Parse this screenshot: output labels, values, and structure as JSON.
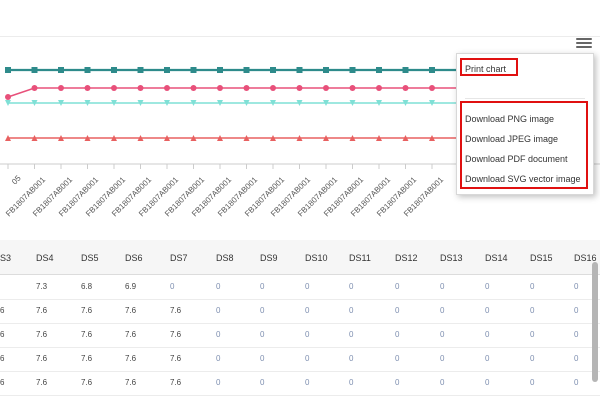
{
  "menu": {
    "print": "Print chart",
    "items": [
      "Download PNG image",
      "Download JPEG image",
      "Download PDF document",
      "Download SVG vector image"
    ]
  },
  "x_axis": {
    "first_label_fragment": "05",
    "label": "FB1807AB001",
    "label_count": 17
  },
  "series": [
    {
      "color": "#2e8b8b",
      "marker": "square"
    },
    {
      "color": "#e8507a",
      "marker": "circle"
    },
    {
      "color": "#7fe0d6",
      "marker": "triangle-down"
    },
    {
      "color": "#e86060",
      "marker": "triangle-up"
    }
  ],
  "table": {
    "headers": [
      "S3",
      "DS4",
      "DS5",
      "DS6",
      "DS7",
      "DS8",
      "DS9",
      "DS10",
      "DS11",
      "DS12",
      "DS13",
      "DS14",
      "DS15",
      "DS16"
    ],
    "rows": [
      [
        "",
        "7.3",
        "6.8",
        "6.9",
        "0",
        "0",
        "0",
        "0",
        "0",
        "0",
        "0",
        "0",
        "0",
        "0"
      ],
      [
        "6",
        "7.6",
        "7.6",
        "7.6",
        "7.6",
        "0",
        "0",
        "0",
        "0",
        "0",
        "0",
        "0",
        "0",
        "0"
      ],
      [
        "6",
        "7.6",
        "7.6",
        "7.6",
        "7.6",
        "0",
        "0",
        "0",
        "0",
        "0",
        "0",
        "0",
        "0",
        "0"
      ],
      [
        "6",
        "7.6",
        "7.6",
        "7.6",
        "7.6",
        "0",
        "0",
        "0",
        "0",
        "0",
        "0",
        "0",
        "0",
        "0"
      ],
      [
        "6",
        "7.6",
        "7.6",
        "7.6",
        "7.6",
        "0",
        "0",
        "0",
        "0",
        "0",
        "0",
        "0",
        "0",
        "0"
      ]
    ]
  }
}
